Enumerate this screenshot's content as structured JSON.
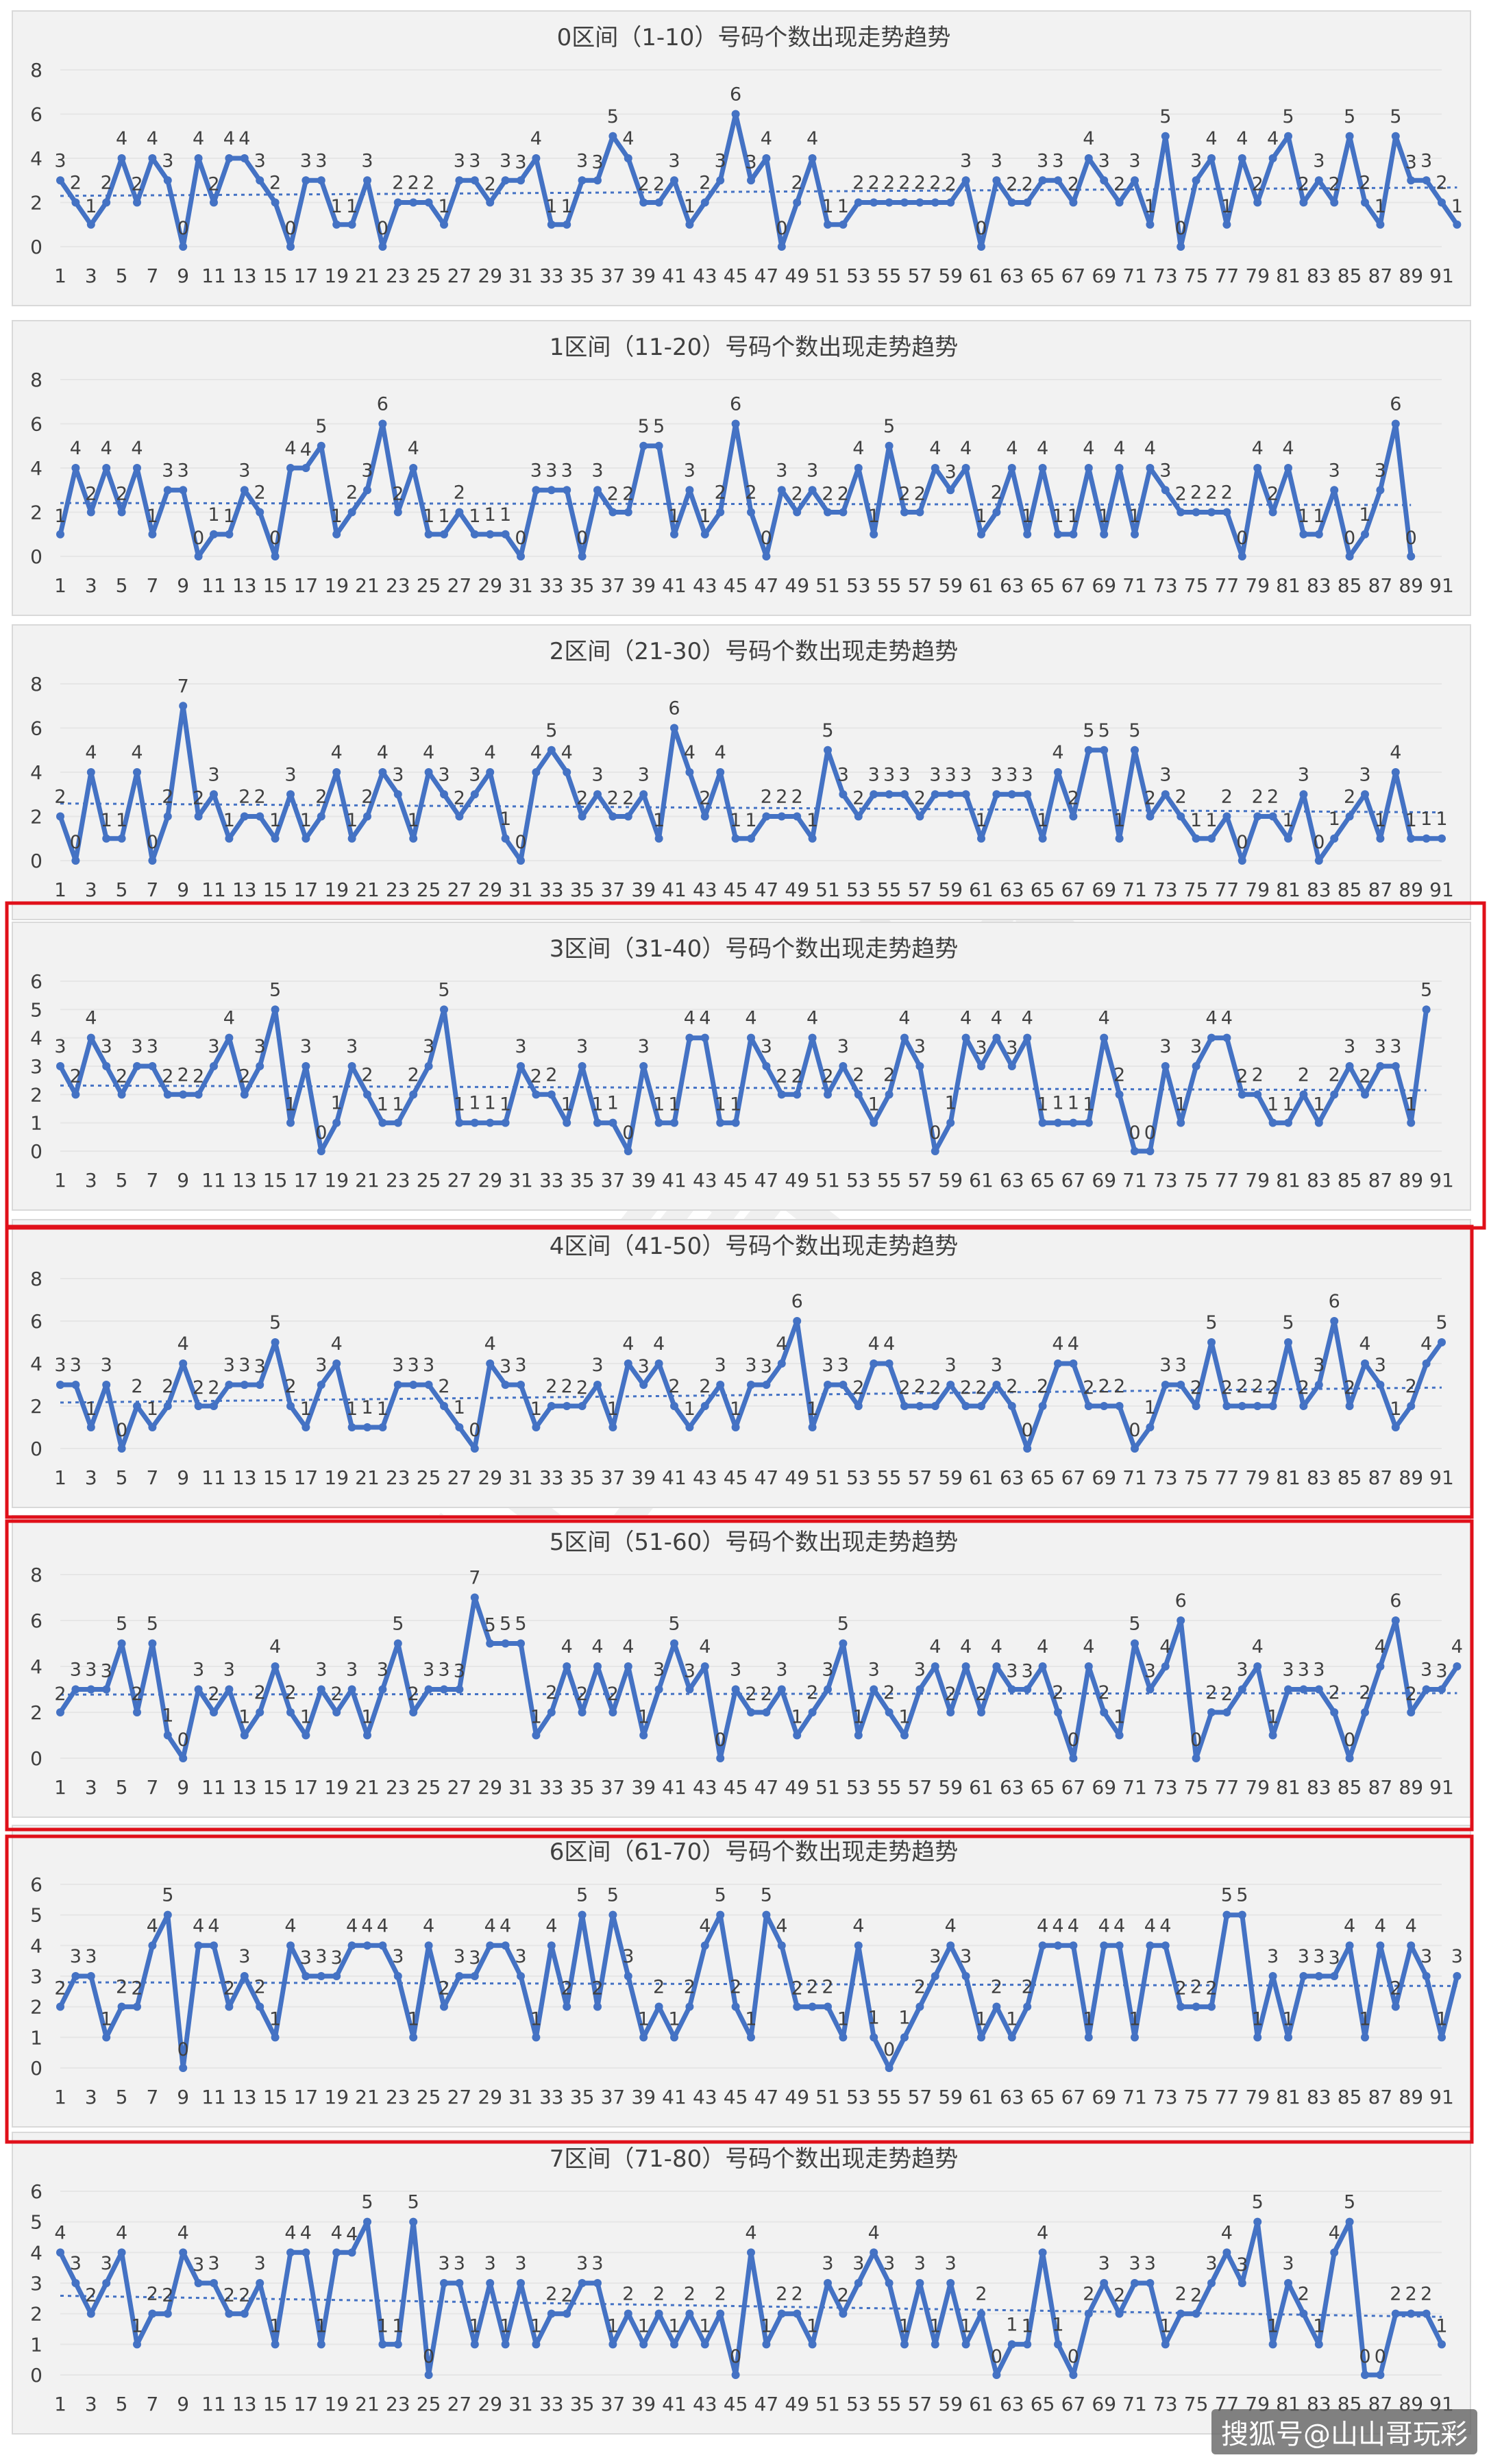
{
  "footer": "搜狐号@山山哥玩彩",
  "watermark": "山山哥玩彩",
  "chart_data": [
    {
      "type": "line",
      "title": "0区间（1-10）号码个数出现走势趋势",
      "ylim": [
        0,
        8
      ],
      "yticks": [
        0,
        2,
        4,
        6,
        8
      ],
      "x_start": 1,
      "x_end": 91,
      "x_tick_step": 2,
      "trendline": "linear",
      "values": [
        3,
        2,
        1,
        2,
        4,
        2,
        4,
        3,
        0,
        4,
        2,
        4,
        4,
        3,
        2,
        0,
        3,
        3,
        1,
        1,
        3,
        0,
        2,
        2,
        2,
        1,
        3,
        3,
        2,
        3,
        3,
        4,
        1,
        1,
        3,
        3,
        5,
        4,
        2,
        2,
        3,
        1,
        2,
        3,
        6,
        3,
        4,
        0,
        2,
        4,
        1,
        1,
        2,
        2,
        2,
        2,
        2,
        2,
        2,
        3,
        0,
        3,
        2,
        2,
        3,
        3,
        2,
        4,
        3,
        2,
        3,
        1,
        5,
        0,
        3,
        4,
        1,
        4,
        2,
        4,
        5,
        2,
        3,
        2,
        5,
        2,
        1,
        5,
        3,
        3,
        2,
        1
      ]
    },
    {
      "type": "line",
      "title": "1区间（11-20）号码个数出现走势趋势",
      "ylim": [
        0,
        8
      ],
      "yticks": [
        0,
        2,
        4,
        6,
        8
      ],
      "x_start": 1,
      "x_end": 91,
      "x_tick_step": 2,
      "trendline": "linear",
      "values": [
        1,
        4,
        2,
        4,
        2,
        4,
        1,
        3,
        3,
        0,
        1,
        1,
        3,
        2,
        0,
        4,
        4,
        5,
        1,
        2,
        3,
        6,
        2,
        4,
        1,
        1,
        2,
        1,
        1,
        1,
        0,
        3,
        3,
        3,
        0,
        3,
        2,
        2,
        5,
        5,
        1,
        3,
        1,
        2,
        6,
        2,
        0,
        3,
        2,
        3,
        2,
        2,
        4,
        1,
        5,
        2,
        2,
        4,
        3,
        4,
        1,
        2,
        4,
        1,
        4,
        1,
        1,
        4,
        1,
        4,
        1,
        4,
        3,
        2,
        2,
        2,
        2,
        0,
        4,
        2,
        4,
        1,
        1,
        3,
        0,
        1,
        3,
        6,
        0
      ],
      "note_len": "89"
    },
    {
      "type": "line",
      "title": "2区间（21-30）号码个数出现走势趋势",
      "ylim": [
        0,
        8
      ],
      "yticks": [
        0,
        2,
        4,
        6,
        8
      ],
      "x_start": 1,
      "x_end": 91,
      "x_tick_step": 2,
      "trendline": "linear",
      "values": [
        2,
        0,
        4,
        1,
        1,
        4,
        0,
        2,
        7,
        2,
        3,
        1,
        2,
        2,
        1,
        3,
        1,
        2,
        4,
        1,
        2,
        4,
        3,
        1,
        4,
        3,
        2,
        3,
        4,
        1,
        0,
        4,
        5,
        4,
        2,
        3,
        2,
        2,
        3,
        1,
        6,
        4,
        2,
        4,
        1,
        1,
        2,
        2,
        2,
        1,
        5,
        3,
        2,
        3,
        3,
        3,
        2,
        3,
        3,
        3,
        1,
        3,
        3,
        3,
        1,
        4,
        2,
        5,
        5,
        1,
        5,
        2,
        3,
        2,
        1,
        1,
        2,
        0,
        2,
        2,
        1,
        3,
        0,
        1,
        2,
        3,
        1,
        4,
        1,
        1,
        1
      ]
    },
    {
      "type": "line",
      "title": "3区间（31-40）号码个数出现走势趋势",
      "ylim": [
        0,
        6
      ],
      "yticks": [
        0,
        1,
        2,
        3,
        4,
        5,
        6
      ],
      "x_start": 1,
      "x_end": 91,
      "x_tick_step": 2,
      "trendline": "linear",
      "values": [
        3,
        2,
        4,
        3,
        2,
        3,
        3,
        2,
        2,
        2,
        3,
        4,
        2,
        3,
        5,
        1,
        3,
        0,
        1,
        3,
        2,
        1,
        1,
        2,
        3,
        5,
        1,
        1,
        1,
        1,
        3,
        2,
        2,
        1,
        3,
        1,
        1,
        0,
        3,
        1,
        1,
        4,
        4,
        1,
        1,
        4,
        3,
        2,
        2,
        4,
        2,
        3,
        2,
        1,
        2,
        4,
        3,
        0,
        1,
        4,
        3,
        4,
        3,
        4,
        1,
        1,
        1,
        1,
        4,
        2,
        0,
        0,
        3,
        1,
        3,
        4,
        4,
        2,
        2,
        1,
        1,
        2,
        1,
        2,
        3,
        2,
        3,
        3,
        1,
        5
      ]
    },
    {
      "type": "line",
      "title": "4区间（41-50）号码个数出现走势趋势",
      "ylim": [
        0,
        8
      ],
      "yticks": [
        0,
        2,
        4,
        6,
        8
      ],
      "x_start": 1,
      "x_end": 91,
      "x_tick_step": 2,
      "trendline": "linear",
      "values": [
        3,
        3,
        1,
        3,
        0,
        2,
        1,
        2,
        4,
        2,
        2,
        3,
        3,
        3,
        5,
        2,
        1,
        3,
        4,
        1,
        1,
        1,
        3,
        3,
        3,
        2,
        1,
        0,
        4,
        3,
        3,
        1,
        2,
        2,
        2,
        3,
        1,
        4,
        3,
        4,
        2,
        1,
        2,
        3,
        1,
        3,
        3,
        4,
        6,
        1,
        3,
        3,
        2,
        4,
        4,
        2,
        2,
        2,
        3,
        2,
        2,
        3,
        2,
        0,
        2,
        4,
        4,
        2,
        2,
        2,
        0,
        1,
        3,
        3,
        2,
        5,
        2,
        2,
        2,
        2,
        5,
        2,
        3,
        6,
        2,
        4,
        3,
        1,
        2,
        4,
        5
      ]
    },
    {
      "type": "line",
      "title": "5区间（51-60）号码个数出现走势趋势",
      "ylim": [
        0,
        8
      ],
      "yticks": [
        0,
        2,
        4,
        6,
        8
      ],
      "x_start": 1,
      "x_end": 91,
      "x_tick_step": 2,
      "trendline": "linear",
      "values": [
        2,
        3,
        3,
        3,
        5,
        2,
        5,
        1,
        0,
        3,
        2,
        3,
        1,
        2,
        4,
        2,
        1,
        3,
        2,
        3,
        1,
        3,
        5,
        2,
        3,
        3,
        3,
        7,
        5,
        5,
        5,
        1,
        2,
        4,
        2,
        4,
        2,
        4,
        1,
        3,
        5,
        3,
        4,
        0,
        3,
        2,
        2,
        3,
        1,
        2,
        3,
        5,
        1,
        3,
        2,
        1,
        3,
        4,
        2,
        4,
        2,
        4,
        3,
        3,
        4,
        2,
        0,
        4,
        2,
        1,
        5,
        3,
        4,
        6,
        0,
        2,
        2,
        3,
        4,
        1,
        3,
        3,
        3,
        2,
        0,
        2,
        4,
        6,
        2,
        3,
        3,
        4
      ]
    },
    {
      "type": "line",
      "title": "6区间（61-70）号码个数出现走势趋势",
      "ylim": [
        0,
        6
      ],
      "yticks": [
        0,
        1,
        2,
        3,
        4,
        5,
        6
      ],
      "x_start": 1,
      "x_end": 91,
      "x_tick_step": 2,
      "trendline": "linear",
      "values": [
        2,
        3,
        3,
        1,
        2,
        2,
        4,
        5,
        0,
        4,
        4,
        2,
        3,
        2,
        1,
        4,
        3,
        3,
        3,
        4,
        4,
        4,
        3,
        1,
        4,
        2,
        3,
        3,
        4,
        4,
        3,
        1,
        4,
        2,
        5,
        2,
        5,
        3,
        1,
        2,
        1,
        2,
        4,
        5,
        2,
        1,
        5,
        4,
        2,
        2,
        2,
        1,
        4,
        1,
        0,
        1,
        2,
        3,
        4,
        3,
        1,
        2,
        1,
        2,
        4,
        4,
        4,
        1,
        4,
        4,
        1,
        4,
        4,
        2,
        2,
        2,
        5,
        5,
        1,
        3,
        1,
        3,
        3,
        3,
        4,
        1,
        4,
        2,
        4,
        3,
        1,
        3
      ]
    },
    {
      "type": "line",
      "title": "7区间（71-80）号码个数出现走势趋势",
      "ylim": [
        0,
        6
      ],
      "yticks": [
        0,
        1,
        2,
        3,
        4,
        5,
        6
      ],
      "x_start": 1,
      "x_end": 91,
      "x_tick_step": 2,
      "trendline": "linear",
      "values": [
        4,
        3,
        2,
        3,
        4,
        1,
        2,
        2,
        4,
        3,
        3,
        2,
        2,
        3,
        1,
        4,
        4,
        1,
        4,
        4,
        5,
        1,
        1,
        5,
        0,
        3,
        3,
        1,
        3,
        1,
        3,
        1,
        2,
        2,
        3,
        3,
        1,
        2,
        1,
        2,
        1,
        2,
        1,
        2,
        0,
        4,
        1,
        2,
        2,
        1,
        3,
        2,
        3,
        4,
        3,
        1,
        3,
        1,
        3,
        1,
        2,
        0,
        1,
        1,
        4,
        1,
        0,
        2,
        3,
        2,
        3,
        3,
        1,
        2,
        2,
        3,
        4,
        3,
        5,
        1,
        3,
        2,
        1,
        4,
        5,
        0,
        0,
        2,
        2,
        2,
        1
      ]
    }
  ]
}
